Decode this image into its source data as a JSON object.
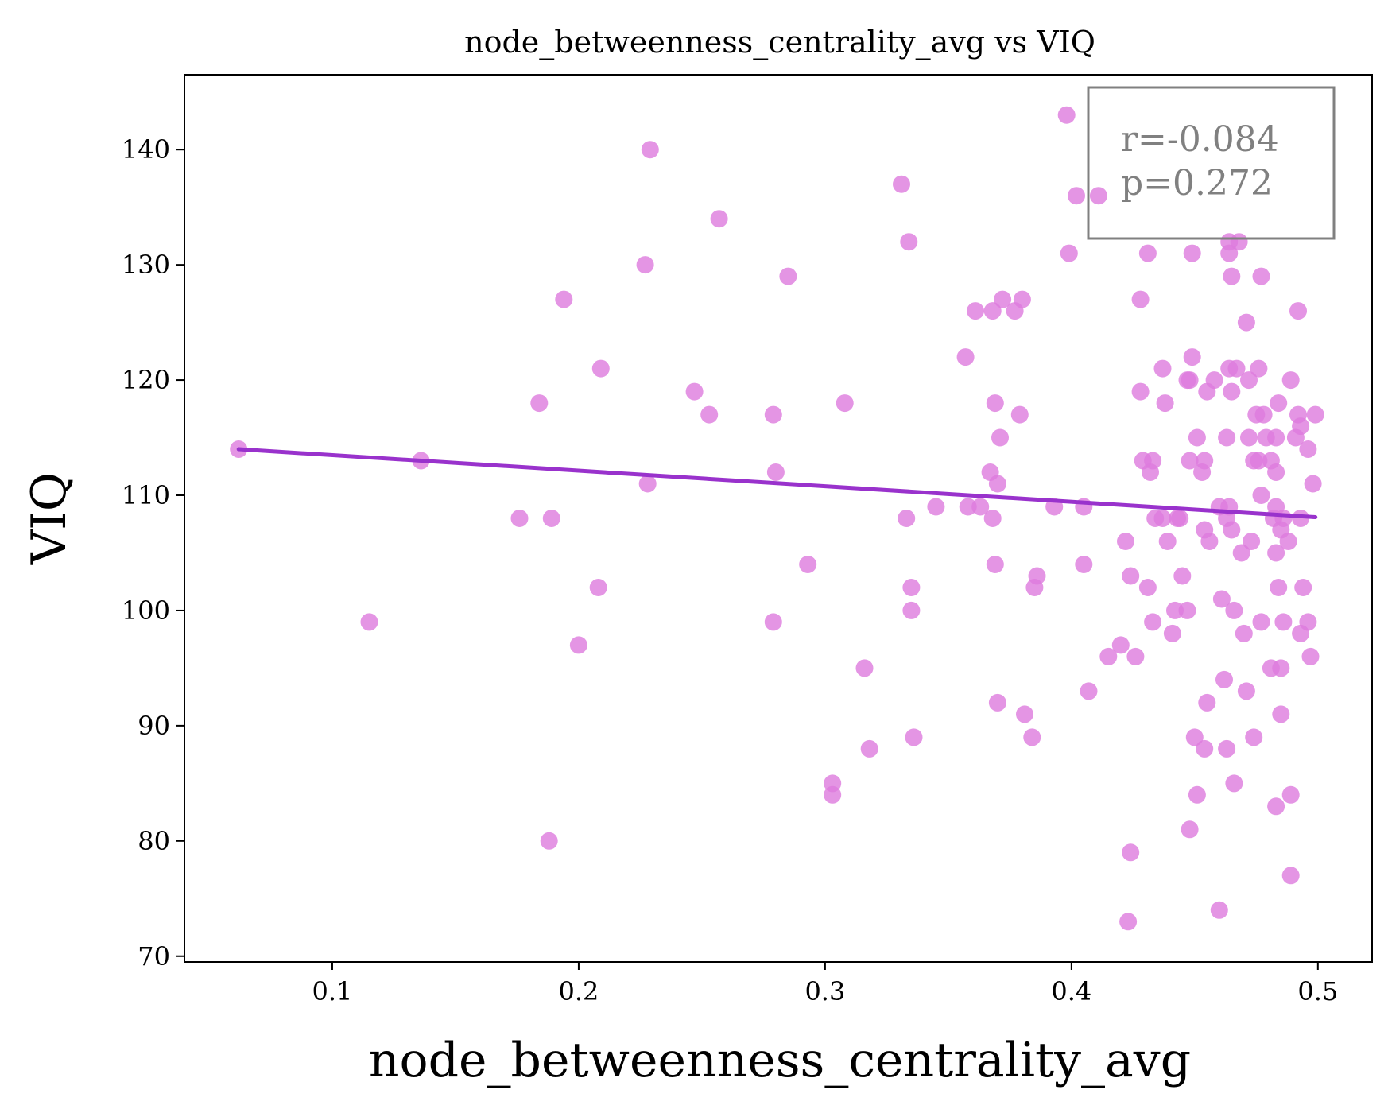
{
  "chart_data": {
    "type": "scatter",
    "title": "node_betweenness_centrality_avg vs VIQ",
    "xlabel": "node_betweenness_centrality_avg",
    "ylabel": "VIQ",
    "xlim": [
      0.04,
      0.522
    ],
    "ylim": [
      69.5,
      146.5
    ],
    "xticks": [
      0.1,
      0.2,
      0.3,
      0.4,
      0.5
    ],
    "xtick_labels": [
      "0.1",
      "0.2",
      "0.3",
      "0.4",
      "0.5"
    ],
    "yticks": [
      70,
      80,
      90,
      100,
      110,
      120,
      130,
      140
    ],
    "ytick_labels": [
      "70",
      "80",
      "90",
      "100",
      "110",
      "120",
      "130",
      "140"
    ],
    "grid": false,
    "point_color": "#dd7bdd",
    "line_color": "#9932cc",
    "annotation": {
      "lines": [
        "r=-0.084",
        "p=0.272"
      ],
      "placement": "top-right",
      "color": "#808080"
    },
    "fit_line": {
      "x": [
        0.062,
        0.499
      ],
      "y": [
        114.0,
        108.1
      ]
    },
    "points": [
      [
        0.062,
        114
      ],
      [
        0.115,
        99
      ],
      [
        0.136,
        113
      ],
      [
        0.176,
        108
      ],
      [
        0.184,
        118
      ],
      [
        0.188,
        80
      ],
      [
        0.189,
        108
      ],
      [
        0.194,
        127
      ],
      [
        0.2,
        97
      ],
      [
        0.208,
        102
      ],
      [
        0.209,
        121
      ],
      [
        0.227,
        130
      ],
      [
        0.228,
        111
      ],
      [
        0.229,
        140
      ],
      [
        0.247,
        119
      ],
      [
        0.253,
        117
      ],
      [
        0.257,
        134
      ],
      [
        0.279,
        117
      ],
      [
        0.279,
        99
      ],
      [
        0.28,
        112
      ],
      [
        0.285,
        129
      ],
      [
        0.293,
        104
      ],
      [
        0.303,
        85
      ],
      [
        0.303,
        84
      ],
      [
        0.308,
        118
      ],
      [
        0.316,
        95
      ],
      [
        0.318,
        88
      ],
      [
        0.331,
        137
      ],
      [
        0.333,
        108
      ],
      [
        0.334,
        132
      ],
      [
        0.335,
        102
      ],
      [
        0.335,
        100
      ],
      [
        0.336,
        89
      ],
      [
        0.345,
        109
      ],
      [
        0.357,
        122
      ],
      [
        0.358,
        109
      ],
      [
        0.361,
        126
      ],
      [
        0.363,
        109
      ],
      [
        0.368,
        126
      ],
      [
        0.367,
        112
      ],
      [
        0.368,
        108
      ],
      [
        0.369,
        104
      ],
      [
        0.369,
        118
      ],
      [
        0.37,
        111
      ],
      [
        0.371,
        115
      ],
      [
        0.37,
        92
      ],
      [
        0.372,
        127
      ],
      [
        0.377,
        126
      ],
      [
        0.379,
        117
      ],
      [
        0.38,
        127
      ],
      [
        0.381,
        91
      ],
      [
        0.384,
        89
      ],
      [
        0.385,
        102
      ],
      [
        0.386,
        103
      ],
      [
        0.393,
        109
      ],
      [
        0.398,
        143
      ],
      [
        0.399,
        131
      ],
      [
        0.402,
        136
      ],
      [
        0.405,
        109
      ],
      [
        0.405,
        104
      ],
      [
        0.407,
        93
      ],
      [
        0.411,
        136
      ],
      [
        0.415,
        96
      ],
      [
        0.42,
        97
      ],
      [
        0.422,
        106
      ],
      [
        0.424,
        103
      ],
      [
        0.424,
        79
      ],
      [
        0.423,
        73
      ],
      [
        0.426,
        96
      ],
      [
        0.428,
        127
      ],
      [
        0.428,
        119
      ],
      [
        0.429,
        113
      ],
      [
        0.431,
        131
      ],
      [
        0.431,
        102
      ],
      [
        0.432,
        112
      ],
      [
        0.433,
        113
      ],
      [
        0.433,
        99
      ],
      [
        0.434,
        108
      ],
      [
        0.437,
        108
      ],
      [
        0.437,
        121
      ],
      [
        0.438,
        118
      ],
      [
        0.439,
        106
      ],
      [
        0.441,
        98
      ],
      [
        0.442,
        100
      ],
      [
        0.443,
        108
      ],
      [
        0.444,
        108
      ],
      [
        0.445,
        103
      ],
      [
        0.447,
        100
      ],
      [
        0.447,
        120
      ],
      [
        0.448,
        120
      ],
      [
        0.448,
        113
      ],
      [
        0.448,
        81
      ],
      [
        0.449,
        122
      ],
      [
        0.449,
        131
      ],
      [
        0.45,
        89
      ],
      [
        0.451,
        84
      ],
      [
        0.451,
        115
      ],
      [
        0.453,
        112
      ],
      [
        0.454,
        113
      ],
      [
        0.454,
        107
      ],
      [
        0.454,
        88
      ],
      [
        0.455,
        92
      ],
      [
        0.455,
        119
      ],
      [
        0.456,
        106
      ],
      [
        0.458,
        120
      ],
      [
        0.46,
        74
      ],
      [
        0.46,
        109
      ],
      [
        0.461,
        101
      ],
      [
        0.462,
        94
      ],
      [
        0.463,
        108
      ],
      [
        0.463,
        115
      ],
      [
        0.463,
        88
      ],
      [
        0.464,
        109
      ],
      [
        0.464,
        132
      ],
      [
        0.464,
        131
      ],
      [
        0.464,
        121
      ],
      [
        0.465,
        119
      ],
      [
        0.465,
        107
      ],
      [
        0.465,
        129
      ],
      [
        0.466,
        100
      ],
      [
        0.466,
        85
      ],
      [
        0.467,
        121
      ],
      [
        0.468,
        132
      ],
      [
        0.469,
        105
      ],
      [
        0.47,
        98
      ],
      [
        0.471,
        93
      ],
      [
        0.471,
        125
      ],
      [
        0.472,
        115
      ],
      [
        0.472,
        120
      ],
      [
        0.473,
        106
      ],
      [
        0.474,
        113
      ],
      [
        0.474,
        89
      ],
      [
        0.475,
        117
      ],
      [
        0.476,
        113
      ],
      [
        0.476,
        121
      ],
      [
        0.477,
        110
      ],
      [
        0.477,
        99
      ],
      [
        0.477,
        129
      ],
      [
        0.478,
        117
      ],
      [
        0.479,
        115
      ],
      [
        0.481,
        95
      ],
      [
        0.481,
        113
      ],
      [
        0.482,
        108
      ],
      [
        0.483,
        105
      ],
      [
        0.483,
        109
      ],
      [
        0.483,
        112
      ],
      [
        0.484,
        102
      ],
      [
        0.483,
        115
      ],
      [
        0.483,
        83
      ],
      [
        0.484,
        118
      ],
      [
        0.485,
        95
      ],
      [
        0.485,
        91
      ],
      [
        0.485,
        107
      ],
      [
        0.486,
        99
      ],
      [
        0.486,
        108
      ],
      [
        0.488,
        106
      ],
      [
        0.489,
        120
      ],
      [
        0.489,
        84
      ],
      [
        0.489,
        77
      ],
      [
        0.491,
        115
      ],
      [
        0.492,
        126
      ],
      [
        0.492,
        117
      ],
      [
        0.493,
        108
      ],
      [
        0.493,
        116
      ],
      [
        0.493,
        98
      ],
      [
        0.494,
        102
      ],
      [
        0.496,
        99
      ],
      [
        0.496,
        114
      ],
      [
        0.497,
        96
      ],
      [
        0.498,
        111
      ],
      [
        0.499,
        117
      ]
    ]
  }
}
